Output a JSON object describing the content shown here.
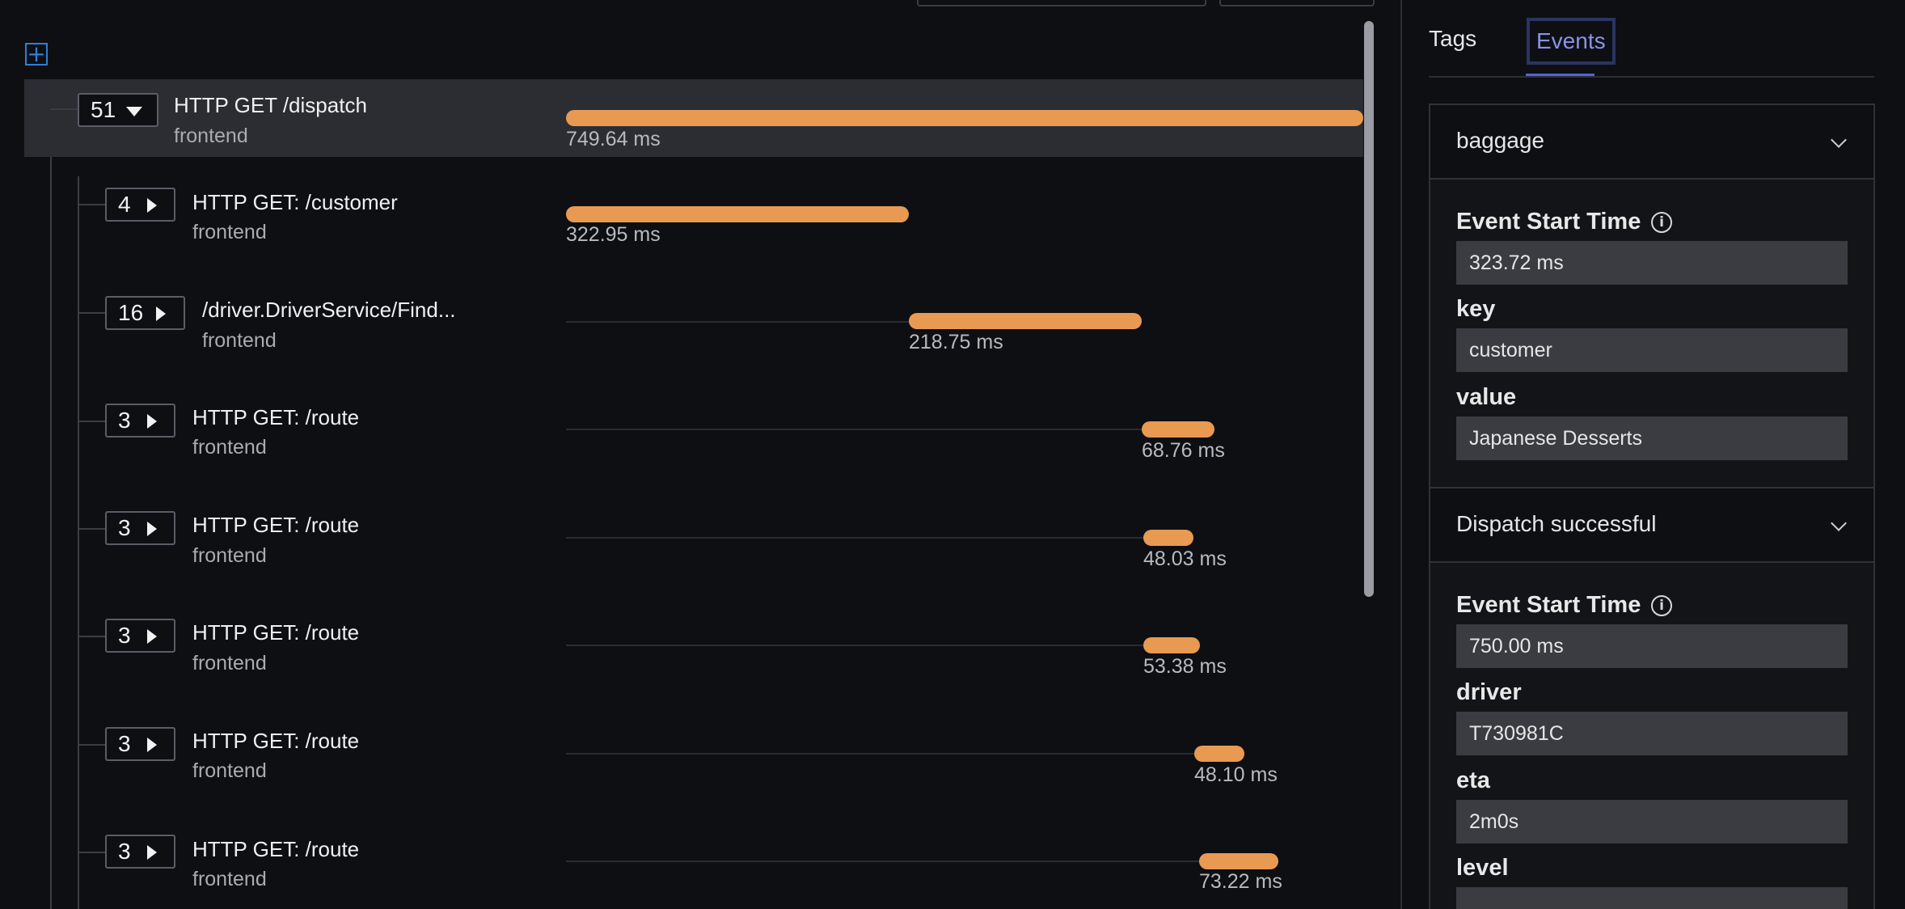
{
  "trace": {
    "spans": [
      {
        "count": "51",
        "expanded": true,
        "name": "HTTP GET /dispatch",
        "service": "frontend",
        "duration": "749.64 ms"
      },
      {
        "count": "4",
        "expanded": false,
        "name": "HTTP GET: /customer",
        "service": "frontend",
        "duration": "322.95 ms"
      },
      {
        "count": "16",
        "expanded": false,
        "name": "/driver.DriverService/Find...",
        "service": "frontend",
        "duration": "218.75 ms"
      },
      {
        "count": "3",
        "expanded": false,
        "name": "HTTP GET: /route",
        "service": "frontend",
        "duration": "68.76 ms"
      },
      {
        "count": "3",
        "expanded": false,
        "name": "HTTP GET: /route",
        "service": "frontend",
        "duration": "48.03 ms"
      },
      {
        "count": "3",
        "expanded": false,
        "name": "HTTP GET: /route",
        "service": "frontend",
        "duration": "53.38 ms"
      },
      {
        "count": "3",
        "expanded": false,
        "name": "HTTP GET: /route",
        "service": "frontend",
        "duration": "48.10 ms"
      },
      {
        "count": "3",
        "expanded": false,
        "name": "HTTP GET: /route",
        "service": "frontend",
        "duration": "73.22 ms"
      }
    ],
    "bar_color": "#e89a52"
  },
  "details": {
    "tabs": [
      {
        "label": "Tags"
      },
      {
        "label": "Events"
      }
    ],
    "active_tab": "Events",
    "events": [
      {
        "title": "baggage",
        "start_time_label": "Event Start Time",
        "start_time": "323.72 ms",
        "fields": [
          {
            "key": "key",
            "value": "customer"
          },
          {
            "key": "value",
            "value": "Japanese Desserts"
          }
        ]
      },
      {
        "title": "Dispatch successful",
        "start_time_label": "Event Start Time",
        "start_time": "750.00 ms",
        "fields": [
          {
            "key": "driver",
            "value": "T730981C"
          },
          {
            "key": "eta",
            "value": "2m0s"
          },
          {
            "key": "level",
            "value": ""
          }
        ]
      }
    ]
  }
}
